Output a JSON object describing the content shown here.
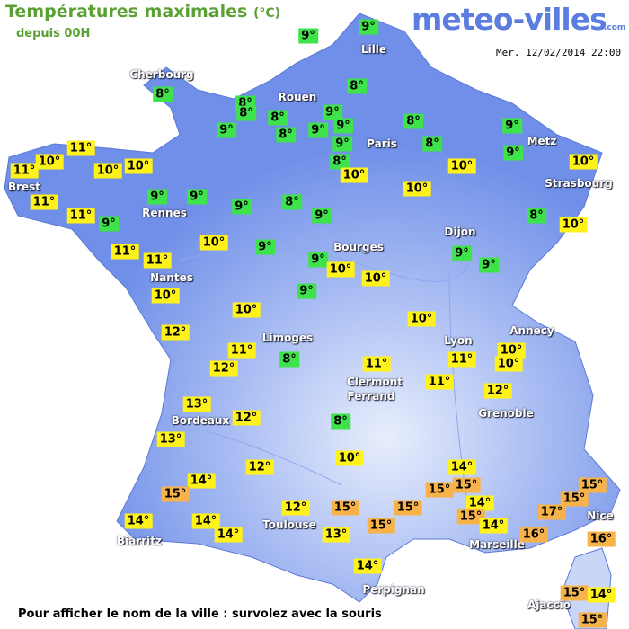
{
  "header": {
    "title": "Températures maximales",
    "unit": "(°C)",
    "subtitle": "depuis 00H",
    "logo": "meteo-villes",
    "logo_suffix": ".com",
    "date": "Mer. 12/02/2014 22:00"
  },
  "footer": "Pour afficher le nom de la ville : survolez avec la souris",
  "cities": [
    "Cherbourg",
    "Lille",
    "Rouen",
    "Paris",
    "Metz",
    "Strasbourg",
    "Brest",
    "Rennes",
    "Nantes",
    "Bourges",
    "Dijon",
    "Limoges",
    "Annecy",
    "Lyon",
    "Clermont",
    "Ferrand",
    "Grenoble",
    "Bordeaux",
    "Toulouse",
    "Biarritz",
    "Marseille",
    "Nice",
    "Perpignan",
    "Ajaccio"
  ],
  "temperatures": [
    "9°",
    "9°",
    "8°",
    "8°",
    "8°",
    "8°",
    "8°",
    "9°",
    "9°",
    "8°",
    "9°",
    "9°",
    "9°",
    "8°",
    "8°",
    "8°",
    "9°",
    "9°",
    "11°",
    "10°",
    "11°",
    "10°",
    "10°",
    "10°",
    "10°",
    "10°",
    "11°",
    "9°",
    "9°",
    "9°",
    "8°",
    "9°",
    "10°",
    "11°",
    "9°",
    "8°",
    "10°",
    "11°",
    "10°",
    "9°",
    "11°",
    "9°",
    "9°",
    "9°",
    "10°",
    "10°",
    "10°",
    "9°",
    "10°",
    "10°",
    "12°",
    "11°",
    "10°",
    "10°",
    "12°",
    "8°",
    "11°",
    "11°",
    "11°",
    "12°",
    "13°",
    "12°",
    "8°",
    "13°",
    "10°",
    "12°",
    "14°",
    "14°",
    "15°",
    "15°",
    "15°",
    "15°",
    "15°",
    "12°",
    "15°",
    "15°",
    "14°",
    "15°",
    "17°",
    "14°",
    "14°",
    "15°",
    "14°",
    "16°",
    "16°",
    "14°",
    "13°",
    "14°",
    "15°",
    "14°",
    "15°"
  ]
}
